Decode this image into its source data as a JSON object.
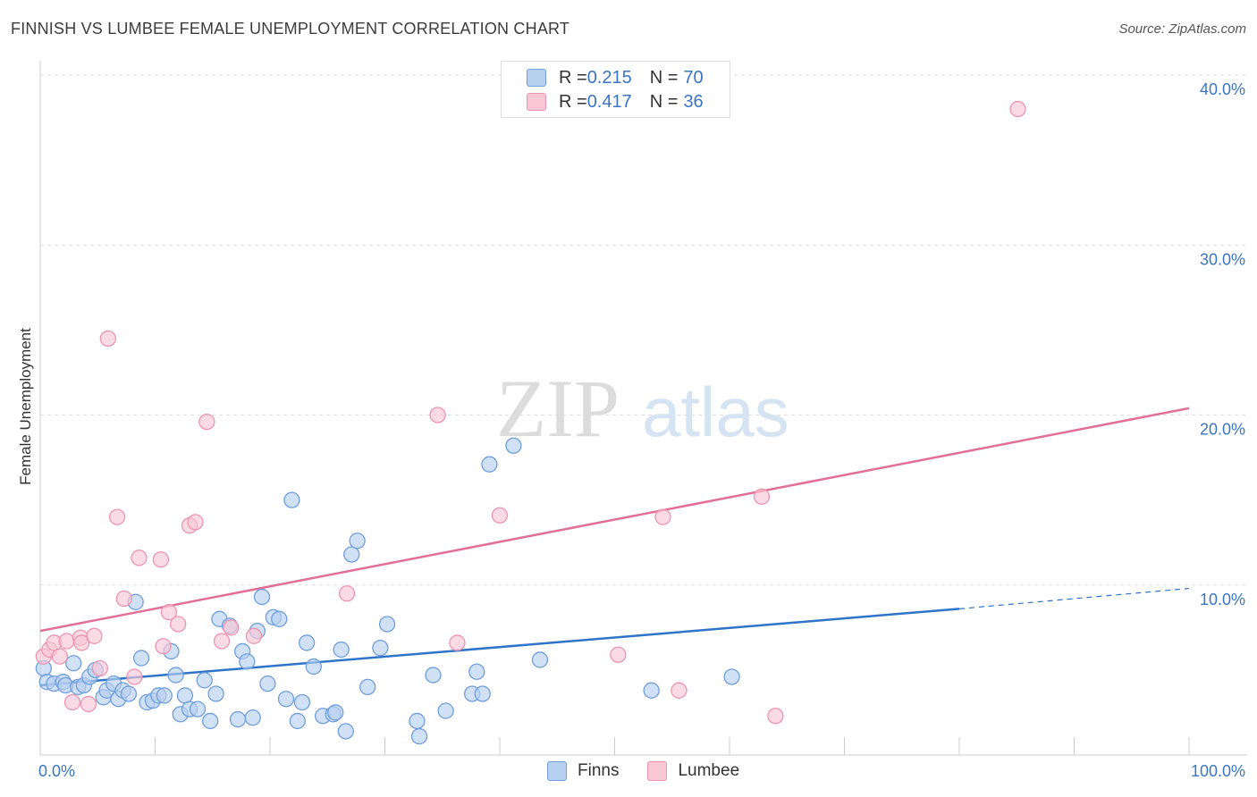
{
  "title": "FINNISH VS LUMBEE FEMALE UNEMPLOYMENT CORRELATION CHART",
  "source": "Source: ZipAtlas.com",
  "watermark": {
    "zip": "ZIP",
    "atlas": "atlas"
  },
  "legend_top": [
    {
      "r_label": "R = ",
      "r_value": "0.215",
      "n_label": "N = ",
      "n_value": "70"
    },
    {
      "r_label": "R = ",
      "r_value": "0.417",
      "n_label": "N = ",
      "n_value": "36"
    }
  ],
  "colors": {
    "finns_fill": "#b7d0f0",
    "finns_stroke": "#6f9fdc",
    "finns_line": "#2f74c9",
    "lumbee_fill": "#f8c6d5",
    "lumbee_stroke": "#ec95b0",
    "lumbee_line": "#e26f96",
    "tick_label": "#3a75c4",
    "grid": "#dddddd"
  },
  "chart_data": {
    "type": "scatter",
    "ylabel": "Female Unemployment",
    "xlim": [
      0,
      100
    ],
    "ylim": [
      0,
      40
    ],
    "x_tick_labels": [
      "0.0%",
      "100.0%"
    ],
    "y_ticks": [
      10,
      20,
      30,
      40
    ],
    "y_tick_labels": [
      "10.0%",
      "20.0%",
      "30.0%",
      "40.0%"
    ],
    "grid": "horizontal dashed",
    "legend_placement": "bottom-center",
    "series": [
      {
        "name": "Finns",
        "points": [
          [
            0.3,
            5.1
          ],
          [
            0.6,
            4.3
          ],
          [
            1.2,
            4.2
          ],
          [
            2.0,
            4.3
          ],
          [
            2.2,
            4.1
          ],
          [
            2.9,
            5.4
          ],
          [
            3.3,
            4.0
          ],
          [
            3.8,
            4.1
          ],
          [
            4.3,
            4.6
          ],
          [
            4.8,
            5.0
          ],
          [
            5.5,
            3.4
          ],
          [
            5.8,
            3.8
          ],
          [
            6.4,
            4.2
          ],
          [
            6.8,
            3.3
          ],
          [
            7.2,
            3.8
          ],
          [
            7.7,
            3.6
          ],
          [
            8.3,
            9.0
          ],
          [
            8.8,
            5.7
          ],
          [
            9.3,
            3.1
          ],
          [
            9.8,
            3.2
          ],
          [
            10.3,
            3.5
          ],
          [
            10.8,
            3.5
          ],
          [
            11.4,
            6.1
          ],
          [
            11.8,
            4.7
          ],
          [
            12.2,
            2.4
          ],
          [
            12.6,
            3.5
          ],
          [
            13.0,
            2.7
          ],
          [
            13.7,
            2.7
          ],
          [
            14.3,
            4.4
          ],
          [
            14.8,
            2.0
          ],
          [
            15.3,
            3.6
          ],
          [
            15.6,
            8.0
          ],
          [
            16.5,
            7.6
          ],
          [
            17.2,
            2.1
          ],
          [
            17.6,
            6.1
          ],
          [
            18.0,
            5.5
          ],
          [
            18.5,
            2.2
          ],
          [
            18.9,
            7.3
          ],
          [
            19.3,
            9.3
          ],
          [
            19.8,
            4.2
          ],
          [
            20.3,
            8.1
          ],
          [
            20.8,
            8.0
          ],
          [
            21.4,
            3.3
          ],
          [
            21.9,
            15.0
          ],
          [
            22.4,
            2.0
          ],
          [
            22.8,
            3.1
          ],
          [
            23.2,
            6.6
          ],
          [
            23.8,
            5.2
          ],
          [
            24.6,
            2.3
          ],
          [
            25.5,
            2.4
          ],
          [
            25.7,
            2.5
          ],
          [
            26.2,
            6.2
          ],
          [
            26.6,
            1.4
          ],
          [
            27.1,
            11.8
          ],
          [
            27.6,
            12.6
          ],
          [
            28.5,
            4.0
          ],
          [
            29.6,
            6.3
          ],
          [
            30.2,
            7.7
          ],
          [
            32.8,
            2.0
          ],
          [
            33.0,
            1.1
          ],
          [
            34.2,
            4.7
          ],
          [
            35.3,
            2.6
          ],
          [
            37.6,
            3.6
          ],
          [
            38.0,
            4.9
          ],
          [
            38.5,
            3.6
          ],
          [
            39.1,
            17.1
          ],
          [
            41.2,
            18.2
          ],
          [
            43.5,
            5.6
          ],
          [
            53.2,
            3.8
          ],
          [
            60.2,
            4.6
          ]
        ]
      },
      {
        "name": "Lumbee",
        "points": [
          [
            0.3,
            5.8
          ],
          [
            0.8,
            6.2
          ],
          [
            1.2,
            6.6
          ],
          [
            1.7,
            5.8
          ],
          [
            2.3,
            6.7
          ],
          [
            2.8,
            3.1
          ],
          [
            3.5,
            6.9
          ],
          [
            3.6,
            6.6
          ],
          [
            4.2,
            3.0
          ],
          [
            4.7,
            7.0
          ],
          [
            5.2,
            5.1
          ],
          [
            5.9,
            24.5
          ],
          [
            6.7,
            14.0
          ],
          [
            7.3,
            9.2
          ],
          [
            8.2,
            4.6
          ],
          [
            8.6,
            11.6
          ],
          [
            10.5,
            11.5
          ],
          [
            10.7,
            6.4
          ],
          [
            11.2,
            8.4
          ],
          [
            12.0,
            7.7
          ],
          [
            13.0,
            13.5
          ],
          [
            13.5,
            13.7
          ],
          [
            14.5,
            19.6
          ],
          [
            15.8,
            6.7
          ],
          [
            16.6,
            7.5
          ],
          [
            18.6,
            7.0
          ],
          [
            26.7,
            9.5
          ],
          [
            34.6,
            20.0
          ],
          [
            36.3,
            6.6
          ],
          [
            40.0,
            14.1
          ],
          [
            50.3,
            5.9
          ],
          [
            54.2,
            14.0
          ],
          [
            55.6,
            3.8
          ],
          [
            62.8,
            15.2
          ],
          [
            64.0,
            2.3
          ],
          [
            85.1,
            38.0
          ]
        ]
      }
    ],
    "trend_lines": [
      {
        "name": "Finns",
        "x": [
          0,
          80
        ],
        "y": [
          4.1,
          8.6
        ],
        "dashed_to": [
          100,
          9.8
        ]
      },
      {
        "name": "Lumbee",
        "x": [
          0,
          100
        ],
        "y": [
          7.3,
          20.4
        ]
      }
    ]
  },
  "bottom_legend": [
    "Finns",
    "Lumbee"
  ]
}
